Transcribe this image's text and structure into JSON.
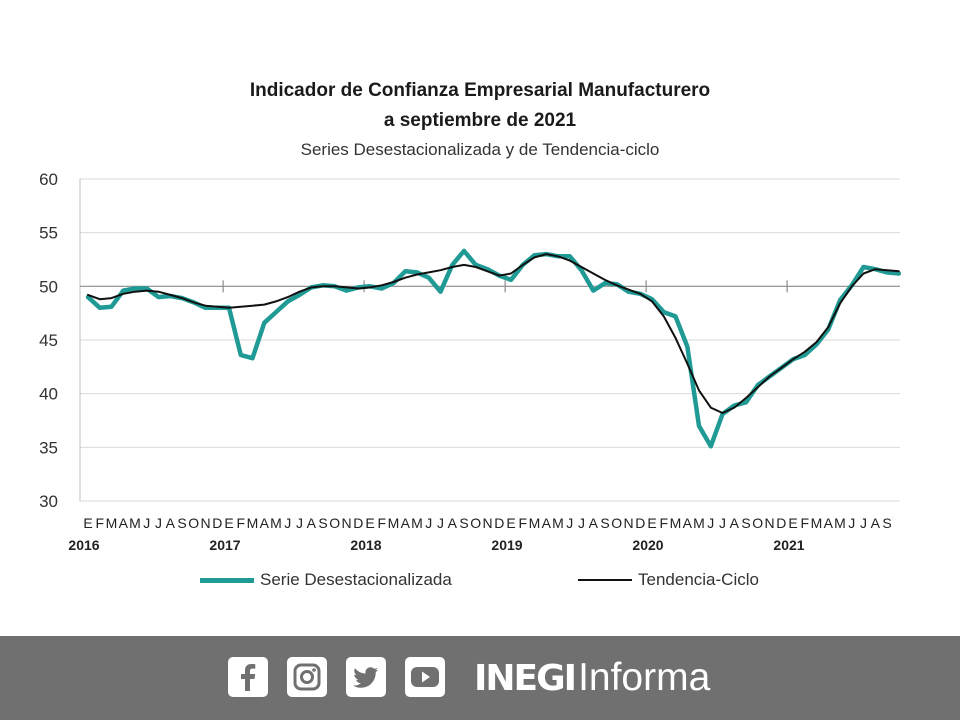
{
  "chart_data": {
    "type": "line",
    "title": "Indicador de Confianza Empresarial Manufacturero",
    "subtitle": "a septiembre de 2021",
    "caption": "Series Desestacionalizada y de Tendencia-ciclo",
    "ylim": [
      30,
      60
    ],
    "yticks": [
      "60",
      "55",
      "50",
      "45",
      "40",
      "35",
      "30"
    ],
    "reference_line": 50,
    "month_labels": [
      "E",
      "F",
      "M",
      "A",
      "M",
      "J",
      "J",
      "A",
      "S",
      "O",
      "N",
      "D"
    ],
    "years": [
      "2016",
      "2017",
      "2018",
      "2019",
      "2020",
      "2021"
    ],
    "last_year_months": [
      "E",
      "F",
      "M",
      "A",
      "M",
      "J",
      "J",
      "A",
      "S"
    ],
    "series": [
      {
        "name": "Serie Desestacionalizada",
        "color": "#1f9a95",
        "values": [
          49.0,
          48.0,
          48.1,
          49.6,
          49.8,
          49.8,
          49.0,
          49.1,
          48.9,
          48.5,
          48.0,
          48.0,
          48.0,
          43.6,
          43.3,
          46.6,
          47.6,
          48.6,
          49.2,
          49.9,
          50.1,
          50.0,
          49.6,
          49.9,
          50.0,
          49.8,
          50.3,
          51.4,
          51.3,
          50.8,
          49.5,
          52.0,
          53.3,
          52.0,
          51.6,
          51.0,
          50.6,
          52.0,
          52.9,
          53.0,
          52.8,
          52.8,
          51.5,
          49.6,
          50.3,
          50.2,
          49.5,
          49.3,
          48.8,
          47.6,
          47.2,
          44.4,
          37.0,
          35.1,
          38.1,
          38.9,
          39.2,
          40.8,
          41.6,
          42.4,
          43.2,
          43.6,
          44.6,
          46.0,
          48.7,
          50.1,
          51.8,
          51.6,
          51.3,
          51.2
        ]
      },
      {
        "name": "Tendencia-Ciclo",
        "color": "#111111",
        "values": [
          49.2,
          48.8,
          48.9,
          49.3,
          49.5,
          49.6,
          49.5,
          49.2,
          48.9,
          48.5,
          48.2,
          48.1,
          48.0,
          48.1,
          48.2,
          48.3,
          48.6,
          49.0,
          49.5,
          49.9,
          50.0,
          50.0,
          49.9,
          49.8,
          49.9,
          50.1,
          50.4,
          50.8,
          51.1,
          51.3,
          51.5,
          51.8,
          52.0,
          51.8,
          51.4,
          51.0,
          51.2,
          52.0,
          52.7,
          53.0,
          52.8,
          52.4,
          51.8,
          51.2,
          50.6,
          50.1,
          49.7,
          49.3,
          48.6,
          47.2,
          45.2,
          42.8,
          40.3,
          38.7,
          38.2,
          38.7,
          39.6,
          40.6,
          41.6,
          42.4,
          43.2,
          43.9,
          44.8,
          46.2,
          48.4,
          50.0,
          51.2,
          51.6,
          51.5,
          51.4
        ]
      }
    ]
  },
  "legend": {
    "label_1": "Serie Desestacionalizada",
    "label_2": "Tendencia-Ciclo"
  },
  "footer": {
    "social_icons": [
      "facebook-icon",
      "instagram-icon",
      "twitter-icon",
      "youtube-icon"
    ],
    "brand_bold": "INEGI",
    "brand_light": "Informa",
    "background_color": "#707070"
  }
}
